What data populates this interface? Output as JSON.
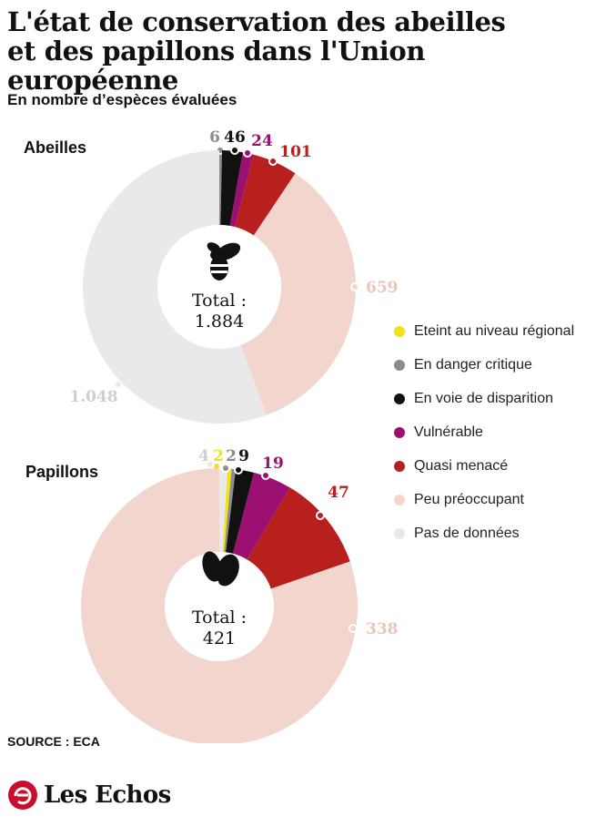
{
  "title_line1": "L'état de conservation des abeilles",
  "title_line2": "et des papillons dans l'Union européenne",
  "subtitle": "En nombre d’espèces évaluées",
  "source": "SOURCE : ECA",
  "logo_text": "Les Echos",
  "colors": {
    "Eteint au niveau régional": "#f2e21a",
    "En danger critique": "#8c8c8c",
    "En voie de disparition": "#111111",
    "Vulnérable": "#9b1070",
    "Quasi menacé": "#b8201e",
    "Peu préoccupant": "#f2d5cd",
    "Pas de données": "#e9e9e9"
  },
  "chart_data": [
    {
      "type": "pie",
      "title": "Abeilles",
      "center_icon": "bee-icon",
      "total_label": "Total :",
      "total_value": "1.884",
      "slices": [
        {
          "category": "En danger critique",
          "value": 6,
          "label": "6"
        },
        {
          "category": "En voie de disparition",
          "value": 46,
          "label": "46"
        },
        {
          "category": "Vulnérable",
          "value": 24,
          "label": "24"
        },
        {
          "category": "Quasi menacé",
          "value": 101,
          "label": "101"
        },
        {
          "category": "Peu préoccupant",
          "value": 659,
          "label": "659"
        },
        {
          "category": "Pas de données",
          "value": 1048,
          "label": "1.048"
        }
      ]
    },
    {
      "type": "pie",
      "title": "Papillons",
      "center_icon": "butterfly-icon",
      "total_label": "Total :",
      "total_value": "421",
      "slices": [
        {
          "category": "Pas de données",
          "value": 4,
          "label": "4"
        },
        {
          "category": "Eteint au niveau régional",
          "value": 2,
          "label": "2"
        },
        {
          "category": "En danger critique",
          "value": 2,
          "label": "2"
        },
        {
          "category": "En voie de disparition",
          "value": 9,
          "label": "9"
        },
        {
          "category": "Vulnérable",
          "value": 19,
          "label": "19"
        },
        {
          "category": "Quasi menacé",
          "value": 47,
          "label": "47"
        },
        {
          "category": "Peu préoccupant",
          "value": 338,
          "label": "338"
        }
      ]
    }
  ],
  "legend": [
    "Eteint au niveau régional",
    "En danger critique",
    "En voie de disparition",
    "Vulnérable",
    "Quasi menacé",
    "Peu préoccupant",
    "Pas de données"
  ]
}
